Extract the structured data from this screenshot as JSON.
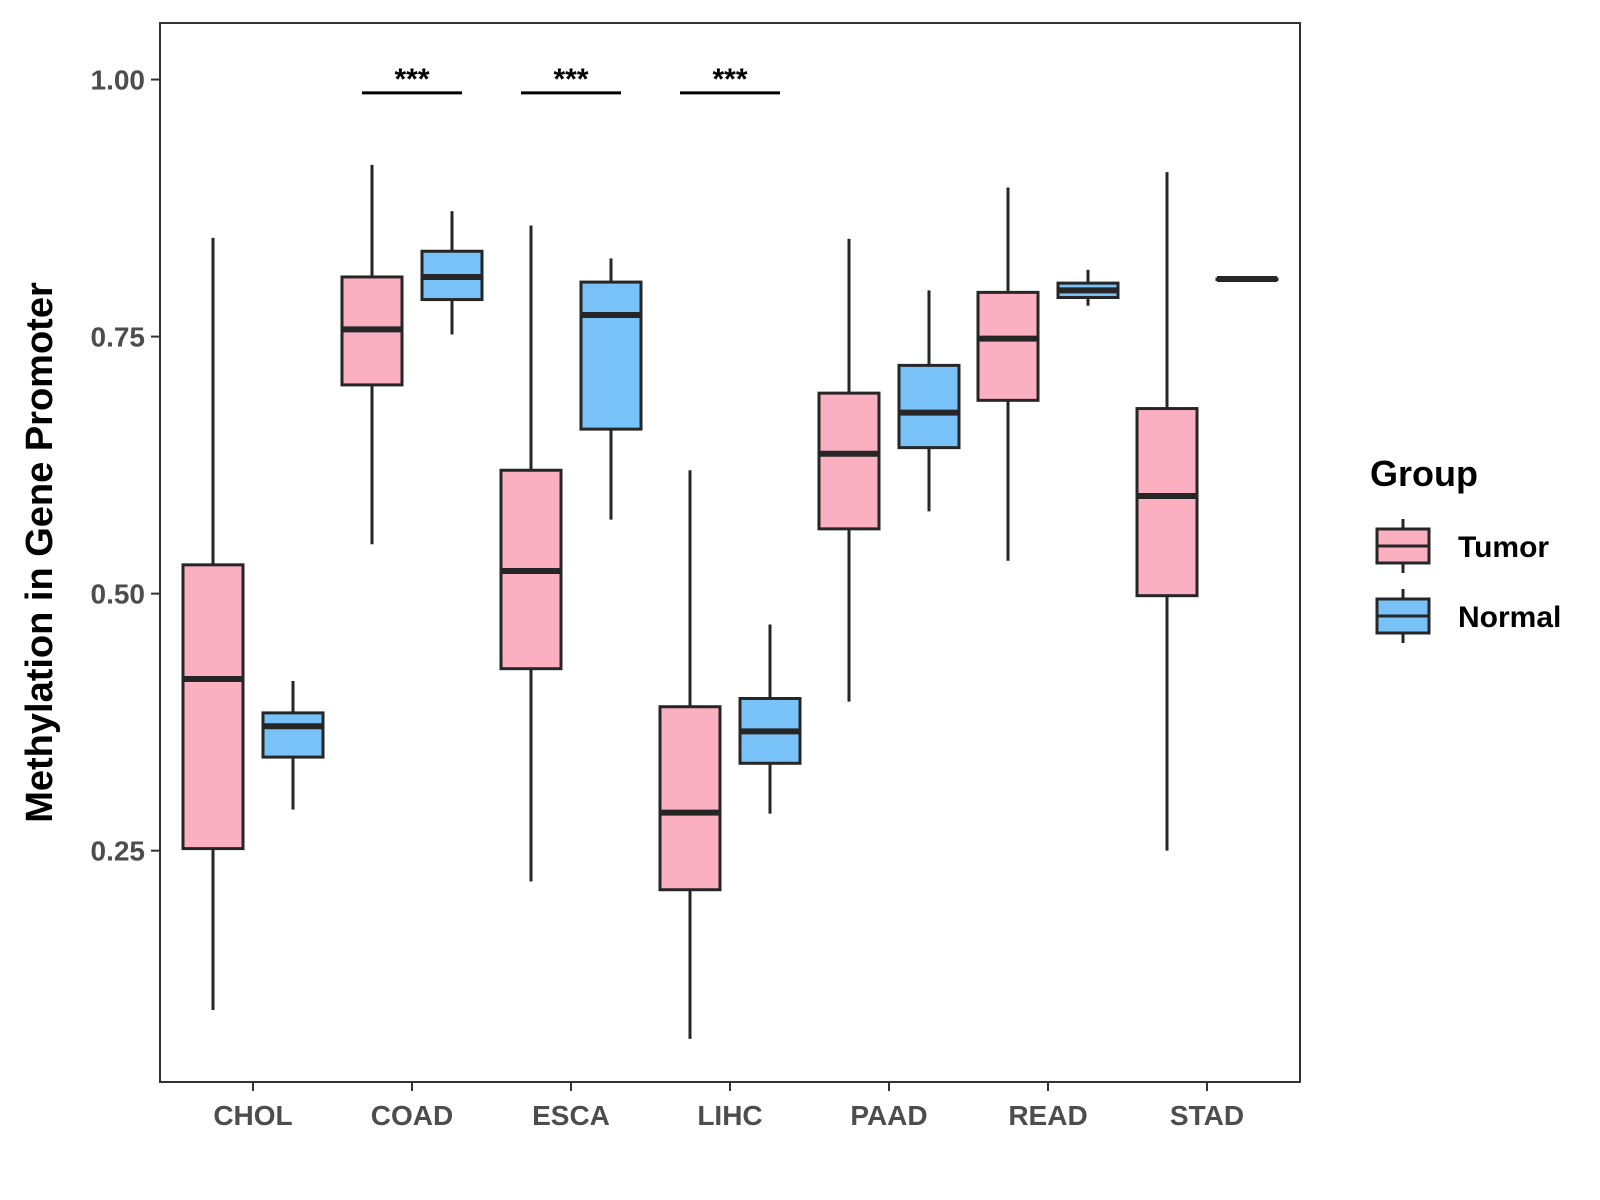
{
  "chart_data": {
    "type": "boxplot",
    "ylabel": "Methylation in Gene Promoter",
    "xlabel": "",
    "ylim": [
      0.025,
      1.055
    ],
    "yticks": [
      0.25,
      0.5,
      0.75,
      1.0
    ],
    "ytick_labels": [
      "0.25",
      "0.50",
      "0.75",
      "1.00"
    ],
    "categories": [
      "CHOL",
      "COAD",
      "ESCA",
      "LIHC",
      "PAAD",
      "READ",
      "STAD"
    ],
    "legend_title": "Group",
    "legend_position": "right",
    "series": [
      {
        "name": "Tumor",
        "color": "#FBB0C2",
        "boxes": [
          {
            "min": 0.095,
            "q1": 0.252,
            "median": 0.417,
            "q3": 0.528,
            "max": 0.846
          },
          {
            "min": 0.548,
            "q1": 0.703,
            "median": 0.757,
            "q3": 0.808,
            "max": 0.917
          },
          {
            "min": 0.22,
            "q1": 0.427,
            "median": 0.522,
            "q3": 0.62,
            "max": 0.858
          },
          {
            "min": 0.067,
            "q1": 0.212,
            "median": 0.287,
            "q3": 0.39,
            "max": 0.62
          },
          {
            "min": 0.395,
            "q1": 0.563,
            "median": 0.636,
            "q3": 0.695,
            "max": 0.845
          },
          {
            "min": 0.532,
            "q1": 0.688,
            "median": 0.748,
            "q3": 0.793,
            "max": 0.895
          },
          {
            "min": 0.25,
            "q1": 0.498,
            "median": 0.595,
            "q3": 0.68,
            "max": 0.91
          }
        ]
      },
      {
        "name": "Normal",
        "color": "#78C2F7",
        "boxes": [
          {
            "min": 0.29,
            "q1": 0.341,
            "median": 0.371,
            "q3": 0.384,
            "max": 0.415
          },
          {
            "min": 0.752,
            "q1": 0.786,
            "median": 0.808,
            "q3": 0.833,
            "max": 0.872
          },
          {
            "min": 0.572,
            "q1": 0.66,
            "median": 0.771,
            "q3": 0.803,
            "max": 0.826
          },
          {
            "min": 0.286,
            "q1": 0.335,
            "median": 0.366,
            "q3": 0.398,
            "max": 0.47
          },
          {
            "min": 0.58,
            "q1": 0.642,
            "median": 0.676,
            "q3": 0.722,
            "max": 0.795
          },
          {
            "min": 0.78,
            "q1": 0.788,
            "median": 0.795,
            "q3": 0.802,
            "max": 0.815
          },
          {
            "min": 0.806,
            "q1": 0.806,
            "median": 0.806,
            "q3": 0.806,
            "max": 0.806
          }
        ]
      }
    ],
    "annotations": [
      {
        "category": "COAD",
        "text": "***",
        "y": 0.987
      },
      {
        "category": "ESCA",
        "text": "***",
        "y": 0.987
      },
      {
        "category": "LIHC",
        "text": "***",
        "y": 0.987
      }
    ]
  }
}
